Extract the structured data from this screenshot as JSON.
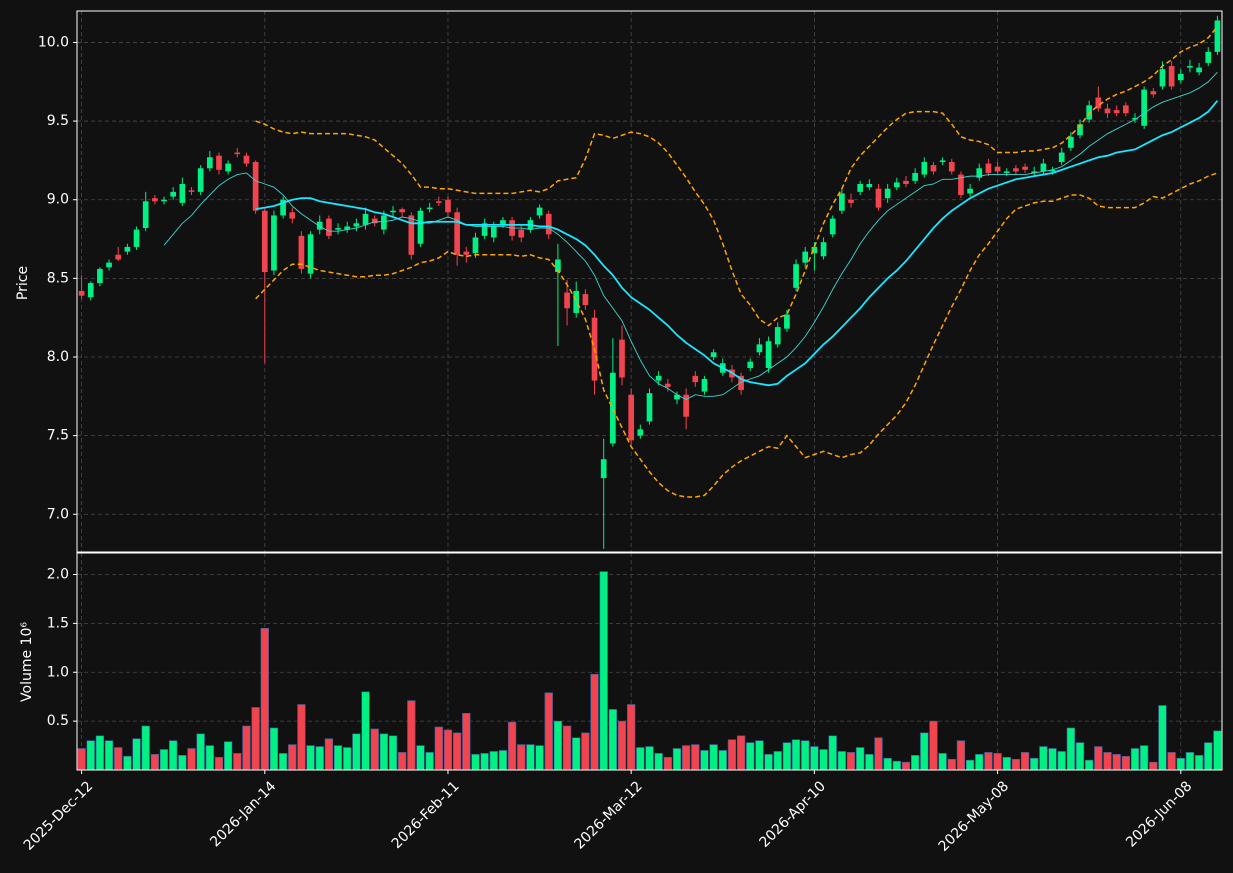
{
  "chart_data": {
    "type": "candlestick",
    "ylabel": "Price",
    "grid": true,
    "up_color": "#00f084",
    "down_color": "#f0444f",
    "ylim": [
      6.76,
      10.2
    ],
    "yticks": [
      {
        "value": 7,
        "label": "7.0"
      },
      7.5,
      {
        "value": 8,
        "label": "8.0"
      },
      8.5,
      {
        "value": 9,
        "label": "9.0"
      },
      9.5,
      {
        "value": 10,
        "label": "10.0"
      }
    ],
    "x": [
      "2025-Dec-12",
      "2025-Dec-15",
      "2025-Dec-16",
      "2025-Dec-17",
      "2025-Dec-18",
      "2025-Dec-19",
      "2025-Dec-22",
      "2025-Dec-23",
      "2025-Dec-24",
      "2025-Dec-29",
      "2025-Dec-30",
      "2025-Dec-31",
      "2026-Jan-02",
      "2026-Jan-05",
      "2026-Jan-06",
      "2026-Jan-07",
      "2026-Jan-08",
      "2026-Jan-09",
      "2026-Jan-12",
      "2026-Jan-13",
      "2026-Jan-14",
      "2026-Jan-15",
      "2026-Jan-16",
      "2026-Jan-19",
      "2026-Jan-20",
      "2026-Jan-21",
      "2026-Jan-22",
      "2026-Jan-23",
      "2026-Jan-26",
      "2026-Jan-27",
      "2026-Jan-28",
      "2026-Jan-29",
      "2026-Jan-30",
      "2026-Feb-02",
      "2026-Feb-03",
      "2026-Feb-04",
      "2026-Feb-05",
      "2026-Feb-06",
      "2026-Feb-09",
      "2026-Feb-10",
      "2026-Feb-11",
      "2026-Feb-12",
      "2026-Feb-13",
      "2026-Feb-17",
      "2026-Feb-18",
      "2026-Feb-19",
      "2026-Feb-20",
      "2026-Feb-23",
      "2026-Feb-24",
      "2026-Feb-25",
      "2026-Feb-26",
      "2026-Feb-27",
      "2026-Mar-02",
      "2026-Mar-03",
      "2026-Mar-04",
      "2026-Mar-05",
      "2026-Mar-06",
      "2026-Mar-09",
      "2026-Mar-10",
      "2026-Mar-11",
      "2026-Mar-12",
      "2026-Mar-13",
      "2026-Mar-16",
      "2026-Mar-17",
      "2026-Mar-18",
      "2026-Mar-19",
      "2026-Mar-20",
      "2026-Mar-23",
      "2026-Mar-24",
      "2026-Mar-25",
      "2026-Mar-26",
      "2026-Mar-27",
      "2026-Mar-30",
      "2026-Mar-31",
      "2026-Apr-01",
      "2026-Apr-02",
      "2026-Apr-06",
      "2026-Apr-07",
      "2026-Apr-08",
      "2026-Apr-09",
      "2026-Apr-10",
      "2026-Apr-13",
      "2026-Apr-14",
      "2026-Apr-15",
      "2026-Apr-16",
      "2026-Apr-17",
      "2026-Apr-20",
      "2026-Apr-21",
      "2026-Apr-22",
      "2026-Apr-23",
      "2026-Apr-24",
      "2026-Apr-27",
      "2026-Apr-28",
      "2026-Apr-29",
      "2026-Apr-30",
      "2026-May-01",
      "2026-May-04",
      "2026-May-05",
      "2026-May-06",
      "2026-May-07",
      "2026-May-08",
      "2026-May-11",
      "2026-May-12",
      "2026-May-13",
      "2026-May-14",
      "2026-May-15",
      "2026-May-18",
      "2026-May-19",
      "2026-May-20",
      "2026-May-21",
      "2026-May-22",
      "2026-May-26",
      "2026-May-27",
      "2026-May-28",
      "2026-May-29",
      "2026-Jun-01",
      "2026-Jun-02",
      "2026-Jun-03",
      "2026-Jun-04",
      "2026-Jun-05",
      "2026-Jun-08",
      "2026-Jun-09",
      "2026-Jun-10",
      "2026-Jun-11",
      "2026-Jun-12"
    ],
    "open": [
      8.42,
      8.38,
      8.47,
      8.57,
      8.65,
      8.67,
      8.7,
      8.82,
      9.01,
      8.99,
      9.02,
      8.98,
      9.06,
      9.05,
      9.2,
      9.28,
      9.18,
      9.3,
      9.28,
      9.24,
      8.93,
      8.55,
      8.9,
      8.92,
      8.77,
      8.53,
      8.81,
      8.88,
      8.81,
      8.81,
      8.83,
      8.84,
      8.88,
      8.81,
      8.92,
      8.94,
      8.9,
      8.72,
      8.94,
      8.99,
      9.0,
      8.92,
      8.67,
      8.66,
      8.77,
      8.76,
      8.84,
      8.87,
      8.81,
      8.81,
      8.9,
      8.91,
      8.54,
      8.41,
      8.28,
      8.4,
      8.25,
      7.23,
      7.45,
      8.11,
      7.76,
      7.5,
      7.59,
      7.85,
      7.83,
      7.73,
      7.76,
      7.88,
      7.78,
      8.0,
      7.9,
      7.92,
      7.88,
      7.93,
      8.03,
      7.93,
      8.08,
      8.18,
      8.44,
      8.6,
      8.66,
      8.64,
      8.78,
      8.93,
      9.0,
      9.05,
      9.08,
      9.07,
      9.01,
      9.08,
      9.12,
      9.12,
      9.16,
      9.22,
      9.24,
      9.24,
      9.16,
      9.04,
      9.14,
      9.23,
      9.21,
      9.17,
      9.2,
      9.21,
      9.17,
      9.18,
      9.18,
      9.24,
      9.33,
      9.41,
      9.51,
      9.65,
      9.58,
      9.57,
      9.6,
      9.51,
      9.47,
      9.69,
      9.72,
      9.85,
      9.76,
      9.84,
      9.81,
      9.87,
      9.94
    ],
    "high": [
      8.52,
      8.48,
      8.57,
      8.62,
      8.7,
      8.72,
      8.83,
      9.05,
      9.03,
      9.02,
      9.08,
      9.14,
      9.08,
      9.22,
      9.31,
      9.3,
      9.25,
      9.33,
      9.3,
      9.25,
      8.95,
      8.93,
      9.02,
      8.95,
      8.8,
      8.8,
      8.9,
      8.9,
      8.85,
      8.86,
      8.88,
      8.95,
      8.9,
      8.93,
      8.96,
      8.95,
      8.92,
      8.95,
      8.98,
      9.02,
      9.02,
      8.95,
      8.7,
      8.79,
      8.88,
      8.86,
      8.89,
      8.89,
      8.84,
      8.89,
      8.97,
      8.93,
      8.72,
      8.49,
      8.48,
      8.43,
      8.3,
      7.48,
      8.12,
      8.2,
      7.8,
      7.57,
      7.8,
      7.91,
      7.86,
      7.78,
      7.8,
      7.91,
      7.88,
      8.05,
      7.99,
      7.95,
      7.9,
      7.99,
      8.12,
      8.13,
      8.22,
      8.3,
      8.62,
      8.7,
      8.73,
      8.76,
      8.9,
      9.07,
      9.04,
      9.12,
      9.13,
      9.1,
      9.1,
      9.14,
      9.15,
      9.2,
      9.27,
      9.24,
      9.27,
      9.26,
      9.18,
      9.1,
      9.23,
      9.26,
      9.24,
      9.2,
      9.22,
      9.23,
      9.21,
      9.26,
      9.21,
      9.33,
      9.43,
      9.51,
      9.63,
      9.72,
      9.61,
      9.6,
      9.62,
      9.55,
      9.72,
      9.71,
      9.88,
      9.88,
      9.83,
      9.89,
      9.87,
      9.97,
      10.17
    ],
    "low": [
      8.37,
      8.36,
      8.45,
      8.55,
      8.61,
      8.65,
      8.68,
      8.8,
      8.97,
      8.97,
      9.0,
      8.96,
      9.03,
      9.03,
      9.18,
      9.16,
      9.16,
      9.27,
      9.21,
      8.91,
      7.96,
      8.52,
      8.88,
      8.85,
      8.53,
      8.5,
      8.78,
      8.75,
      8.78,
      8.79,
      8.8,
      8.81,
      8.83,
      8.78,
      8.89,
      8.89,
      8.62,
      8.7,
      8.92,
      8.96,
      8.89,
      8.58,
      8.6,
      8.63,
      8.75,
      8.73,
      8.82,
      8.74,
      8.73,
      8.79,
      8.88,
      8.75,
      8.07,
      8.2,
      8.25,
      8.3,
      7.76,
      6.78,
      7.43,
      7.82,
      7.44,
      7.48,
      7.57,
      7.82,
      7.78,
      7.7,
      7.54,
      7.81,
      7.76,
      7.98,
      7.88,
      7.84,
      7.76,
      7.91,
      8.01,
      7.9,
      8.06,
      8.16,
      8.42,
      8.57,
      8.55,
      8.62,
      8.76,
      8.91,
      8.95,
      9.03,
      9.06,
      8.93,
      8.98,
      9.06,
      9.08,
      9.1,
      9.14,
      9.16,
      9.22,
      9.16,
      9.01,
      9.02,
      9.12,
      9.15,
      9.16,
      9.15,
      9.16,
      9.17,
      9.15,
      9.16,
      9.16,
      9.22,
      9.31,
      9.39,
      9.49,
      9.56,
      9.52,
      9.53,
      9.53,
      9.49,
      9.45,
      9.65,
      9.7,
      9.7,
      9.74,
      9.81,
      9.79,
      9.85,
      9.92
    ],
    "close": [
      8.39,
      8.47,
      8.56,
      8.6,
      8.62,
      8.7,
      8.81,
      8.99,
      8.99,
      9.0,
      9.05,
      9.1,
      9.05,
      9.2,
      9.27,
      9.19,
      9.23,
      9.29,
      9.23,
      8.93,
      8.54,
      8.9,
      9.0,
      8.88,
      8.56,
      8.78,
      8.86,
      8.77,
      8.82,
      8.83,
      8.85,
      8.91,
      8.85,
      8.9,
      8.93,
      8.92,
      8.65,
      8.93,
      8.95,
      8.98,
      8.92,
      8.65,
      8.65,
      8.76,
      8.85,
      8.83,
      8.87,
      8.77,
      8.76,
      8.87,
      8.95,
      8.78,
      8.62,
      8.31,
      8.42,
      8.33,
      7.85,
      7.35,
      7.9,
      7.87,
      7.47,
      7.54,
      7.77,
      7.88,
      7.81,
      7.76,
      7.62,
      7.84,
      7.86,
      8.03,
      7.96,
      7.87,
      7.79,
      7.97,
      8.08,
      8.1,
      8.19,
      8.27,
      8.59,
      8.67,
      8.7,
      8.73,
      8.88,
      9.04,
      8.98,
      9.1,
      9.1,
      8.95,
      9.07,
      9.11,
      9.1,
      9.17,
      9.24,
      9.18,
      9.25,
      9.18,
      9.03,
      9.07,
      9.2,
      9.17,
      9.18,
      9.18,
      9.18,
      9.19,
      9.18,
      9.23,
      9.19,
      9.3,
      9.4,
      9.48,
      9.6,
      9.58,
      9.55,
      9.55,
      9.55,
      9.52,
      9.7,
      9.67,
      9.83,
      9.72,
      9.8,
      9.85,
      9.84,
      9.94,
      10.14
    ],
    "series": [
      {
        "color": "#3ad6d0",
        "values": [
          null,
          null,
          null,
          null,
          null,
          null,
          null,
          null,
          null,
          8.71,
          8.78,
          8.85,
          8.9,
          8.97,
          9.03,
          9.09,
          9.13,
          9.16,
          9.17,
          9.12,
          9.1,
          9.08,
          9.03,
          8.96,
          8.91,
          8.87,
          8.83,
          8.8,
          8.8,
          8.81,
          8.82,
          8.84,
          8.86,
          8.86,
          8.87,
          8.89,
          8.88,
          8.86,
          8.85,
          8.87,
          8.89,
          8.87,
          8.84,
          8.83,
          8.83,
          8.83,
          8.83,
          8.82,
          8.82,
          8.81,
          8.82,
          8.82,
          8.78,
          8.73,
          8.67,
          8.61,
          8.52,
          8.39,
          8.31,
          8.23,
          8.1,
          7.98,
          7.88,
          7.83,
          7.8,
          7.76,
          7.73,
          7.76,
          7.75,
          7.75,
          7.76,
          7.8,
          7.84,
          7.86,
          7.88,
          7.92,
          7.96,
          8.0,
          8.06,
          8.13,
          8.22,
          8.32,
          8.43,
          8.53,
          8.62,
          8.72,
          8.8,
          8.87,
          8.93,
          8.97,
          9.01,
          9.05,
          9.09,
          9.1,
          9.13,
          9.13,
          9.14,
          9.15,
          9.15,
          9.16,
          9.16,
          9.16,
          9.16,
          9.16,
          9.17,
          9.18,
          9.19,
          9.21,
          9.25,
          9.29,
          9.34,
          9.38,
          9.42,
          9.45,
          9.48,
          9.51,
          9.55,
          9.59,
          9.62,
          9.64,
          9.66,
          9.68,
          9.71,
          9.75,
          9.81
        ]
      },
      {
        "color": "#19e6ff",
        "values": [
          null,
          null,
          null,
          null,
          null,
          null,
          null,
          null,
          null,
          null,
          null,
          null,
          null,
          null,
          null,
          null,
          null,
          null,
          null,
          8.94,
          8.95,
          8.96,
          8.98,
          9.0,
          9.01,
          9.01,
          8.99,
          8.98,
          8.97,
          8.96,
          8.95,
          8.94,
          8.92,
          8.91,
          8.89,
          8.87,
          8.85,
          8.85,
          8.86,
          8.86,
          8.86,
          8.86,
          8.84,
          8.84,
          8.84,
          8.84,
          8.84,
          8.84,
          8.84,
          8.84,
          8.83,
          8.83,
          8.81,
          8.78,
          8.75,
          8.71,
          8.65,
          8.58,
          8.52,
          8.44,
          8.38,
          8.34,
          8.3,
          8.25,
          8.2,
          8.14,
          8.09,
          8.05,
          8.01,
          7.96,
          7.93,
          7.9,
          7.86,
          7.84,
          7.83,
          7.82,
          7.83,
          7.88,
          7.92,
          7.96,
          8.02,
          8.08,
          8.13,
          8.19,
          8.25,
          8.31,
          8.38,
          8.44,
          8.5,
          8.55,
          8.61,
          8.68,
          8.75,
          8.82,
          8.88,
          8.93,
          8.97,
          9.01,
          9.04,
          9.07,
          9.09,
          9.11,
          9.13,
          9.14,
          9.15,
          9.16,
          9.17,
          9.19,
          9.21,
          9.23,
          9.25,
          9.27,
          9.28,
          9.3,
          9.31,
          9.32,
          9.35,
          9.38,
          9.41,
          9.43,
          9.46,
          9.49,
          9.52,
          9.56,
          9.63
        ]
      },
      {
        "color": "#ffa500",
        "dashed": true,
        "values": [
          null,
          null,
          null,
          null,
          null,
          null,
          null,
          null,
          null,
          null,
          null,
          null,
          null,
          null,
          null,
          null,
          null,
          null,
          null,
          9.5,
          9.48,
          9.45,
          9.43,
          9.42,
          9.43,
          9.42,
          9.42,
          9.42,
          9.42,
          9.42,
          9.41,
          9.4,
          9.38,
          9.33,
          9.28,
          9.23,
          9.16,
          9.08,
          9.08,
          9.07,
          9.07,
          9.06,
          9.05,
          9.04,
          9.04,
          9.04,
          9.04,
          9.04,
          9.05,
          9.06,
          9.05,
          9.07,
          9.12,
          9.13,
          9.14,
          9.26,
          9.42,
          9.41,
          9.39,
          9.41,
          9.43,
          9.42,
          9.4,
          9.36,
          9.3,
          9.22,
          9.14,
          9.05,
          8.97,
          8.87,
          8.72,
          8.55,
          8.4,
          8.33,
          8.24,
          8.2,
          8.25,
          8.27,
          8.4,
          8.55,
          8.7,
          8.85,
          8.97,
          9.07,
          9.2,
          9.28,
          9.34,
          9.4,
          9.46,
          9.51,
          9.55,
          9.56,
          9.56,
          9.56,
          9.55,
          9.48,
          9.4,
          9.38,
          9.37,
          9.35,
          9.3,
          9.3,
          9.3,
          9.31,
          9.31,
          9.32,
          9.33,
          9.36,
          9.41,
          9.47,
          9.55,
          9.6,
          9.64,
          9.67,
          9.69,
          9.72,
          9.75,
          9.79,
          9.85,
          9.89,
          9.94,
          9.97,
          9.99,
          10.03,
          10.1
        ]
      },
      {
        "color": "#ffa500",
        "dashed": true,
        "values": [
          null,
          null,
          null,
          null,
          null,
          null,
          null,
          null,
          null,
          null,
          null,
          null,
          null,
          null,
          null,
          null,
          null,
          null,
          null,
          8.37,
          8.43,
          8.49,
          8.55,
          8.59,
          8.59,
          8.57,
          8.55,
          8.54,
          8.53,
          8.52,
          8.51,
          8.51,
          8.52,
          8.52,
          8.53,
          8.55,
          8.57,
          8.6,
          8.61,
          8.63,
          8.67,
          8.65,
          8.64,
          8.65,
          8.65,
          8.65,
          8.65,
          8.65,
          8.64,
          8.65,
          8.63,
          8.62,
          8.55,
          8.46,
          8.36,
          8.24,
          8.05,
          7.79,
          7.67,
          7.55,
          7.43,
          7.35,
          7.27,
          7.2,
          7.15,
          7.12,
          7.11,
          7.11,
          7.12,
          7.18,
          7.25,
          7.3,
          7.34,
          7.37,
          7.4,
          7.43,
          7.42,
          7.5,
          7.43,
          7.36,
          7.38,
          7.4,
          7.38,
          7.36,
          7.38,
          7.39,
          7.44,
          7.51,
          7.57,
          7.63,
          7.71,
          7.82,
          7.95,
          8.08,
          8.2,
          8.32,
          8.43,
          8.55,
          8.65,
          8.72,
          8.8,
          8.88,
          8.94,
          8.96,
          8.98,
          8.99,
          8.99,
          9.01,
          9.03,
          9.03,
          9.01,
          8.96,
          8.95,
          8.95,
          8.95,
          8.95,
          8.98,
          9.02,
          9.01,
          9.04,
          9.07,
          9.1,
          9.12,
          9.15,
          9.17
        ]
      }
    ],
    "volume": {
      "ylabel": "Volume  10⁶",
      "ylim": [
        0,
        2.22
      ],
      "yticks": [
        0.5,
        {
          "value": 1,
          "label": "1.0"
        },
        1.5,
        {
          "value": 2,
          "label": "2.0"
        }
      ],
      "values": [
        0.22,
        0.3,
        0.35,
        0.3,
        0.23,
        0.14,
        0.32,
        0.45,
        0.16,
        0.21,
        0.3,
        0.15,
        0.22,
        0.37,
        0.25,
        0.13,
        0.29,
        0.17,
        0.45,
        0.64,
        1.45,
        0.43,
        0.17,
        0.26,
        0.67,
        0.25,
        0.24,
        0.32,
        0.25,
        0.23,
        0.37,
        0.8,
        0.42,
        0.37,
        0.35,
        0.18,
        0.71,
        0.25,
        0.18,
        0.44,
        0.41,
        0.38,
        0.58,
        0.16,
        0.17,
        0.19,
        0.2,
        0.49,
        0.26,
        0.26,
        0.25,
        0.79,
        0.5,
        0.45,
        0.33,
        0.38,
        0.98,
        2.03,
        0.62,
        0.5,
        0.67,
        0.23,
        0.24,
        0.17,
        0.13,
        0.22,
        0.25,
        0.26,
        0.2,
        0.26,
        0.2,
        0.31,
        0.35,
        0.28,
        0.3,
        0.16,
        0.19,
        0.28,
        0.31,
        0.3,
        0.24,
        0.21,
        0.35,
        0.19,
        0.18,
        0.23,
        0.16,
        0.33,
        0.12,
        0.09,
        0.08,
        0.15,
        0.38,
        0.5,
        0.17,
        0.11,
        0.3,
        0.1,
        0.16,
        0.18,
        0.17,
        0.13,
        0.11,
        0.18,
        0.12,
        0.24,
        0.22,
        0.19,
        0.43,
        0.28,
        0.1,
        0.24,
        0.18,
        0.16,
        0.14,
        0.22,
        0.25,
        0.08,
        0.66,
        0.18,
        0.12,
        0.18,
        0.15,
        0.28,
        0.4
      ]
    }
  }
}
